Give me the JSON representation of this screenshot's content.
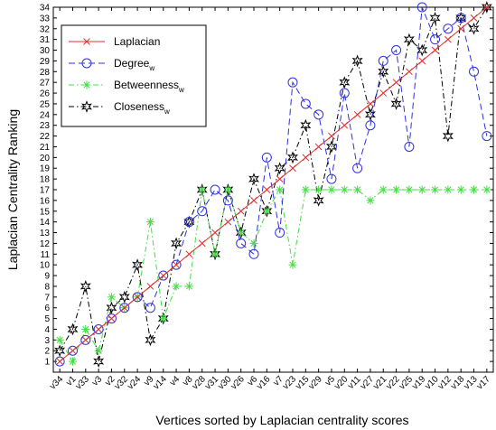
{
  "chart_data": {
    "type": "line",
    "xlabel": "Vertices sorted by Laplacian centrality scores",
    "ylabel": "Laplacian Centrality Ranking",
    "categories": [
      "v34",
      "v1",
      "v33",
      "v3",
      "v2",
      "v32",
      "v24",
      "v9",
      "v14",
      "v4",
      "v8",
      "v28",
      "v31",
      "v30",
      "v26",
      "v6",
      "v16",
      "v7",
      "v23",
      "v15",
      "v29",
      "v5",
      "v20",
      "v11",
      "v27",
      "v21",
      "v22",
      "v25",
      "v19",
      "v10",
      "v12",
      "v18",
      "v13",
      "v17"
    ],
    "ylim": [
      0,
      34
    ],
    "yticks": [
      1,
      2,
      3,
      4,
      5,
      6,
      7,
      8,
      9,
      10,
      11,
      12,
      13,
      14,
      15,
      16,
      17,
      18,
      19,
      20,
      21,
      22,
      23,
      24,
      25,
      26,
      27,
      28,
      29,
      30,
      31,
      32,
      33,
      34
    ],
    "grid": false,
    "legend_position": "top-left",
    "series": [
      {
        "name": "Laplacian",
        "subscript": "",
        "color": "#e03030",
        "marker": "x-mark",
        "line_style": "solid",
        "values": [
          1,
          2,
          3,
          4,
          5,
          6,
          7,
          8,
          9,
          10,
          11,
          12,
          13,
          14,
          15,
          16,
          17,
          18,
          19,
          20,
          21,
          22,
          23,
          24,
          25,
          26,
          27,
          28,
          29,
          30,
          31,
          32,
          33,
          34
        ]
      },
      {
        "name": "Degree",
        "subscript": "w",
        "color": "#3030e0",
        "marker": "circle",
        "line_style": "dashed",
        "values": [
          1,
          2,
          3,
          4,
          5,
          6,
          7,
          6,
          9,
          10,
          14,
          15,
          17,
          16,
          12,
          11,
          20,
          13,
          27,
          25,
          24,
          18,
          26,
          19,
          23,
          29,
          30,
          21,
          34,
          31,
          32,
          33,
          28,
          22
        ]
      },
      {
        "name": "Betweenness",
        "subscript": "w",
        "color": "#44dd44",
        "marker": "asterisk",
        "line_style": "dashdot",
        "values": [
          3,
          1,
          4,
          2,
          7,
          6,
          7,
          14,
          5,
          8,
          8,
          17,
          11,
          17,
          13,
          12,
          15,
          17,
          10,
          17,
          17,
          17,
          17,
          17,
          16,
          17,
          17,
          17,
          17,
          17,
          17,
          17,
          17,
          17
        ]
      },
      {
        "name": "Closeness",
        "subscript": "w",
        "color": "#000000",
        "marker": "star",
        "line_style": "dashdot",
        "values": [
          2,
          4,
          8,
          1,
          6,
          7,
          10,
          3,
          5,
          12,
          14,
          17,
          11,
          17,
          13,
          18,
          15,
          19,
          20,
          23,
          16,
          21,
          27,
          29,
          24,
          28,
          25,
          31,
          30,
          33,
          22,
          33,
          32,
          34
        ]
      }
    ]
  }
}
